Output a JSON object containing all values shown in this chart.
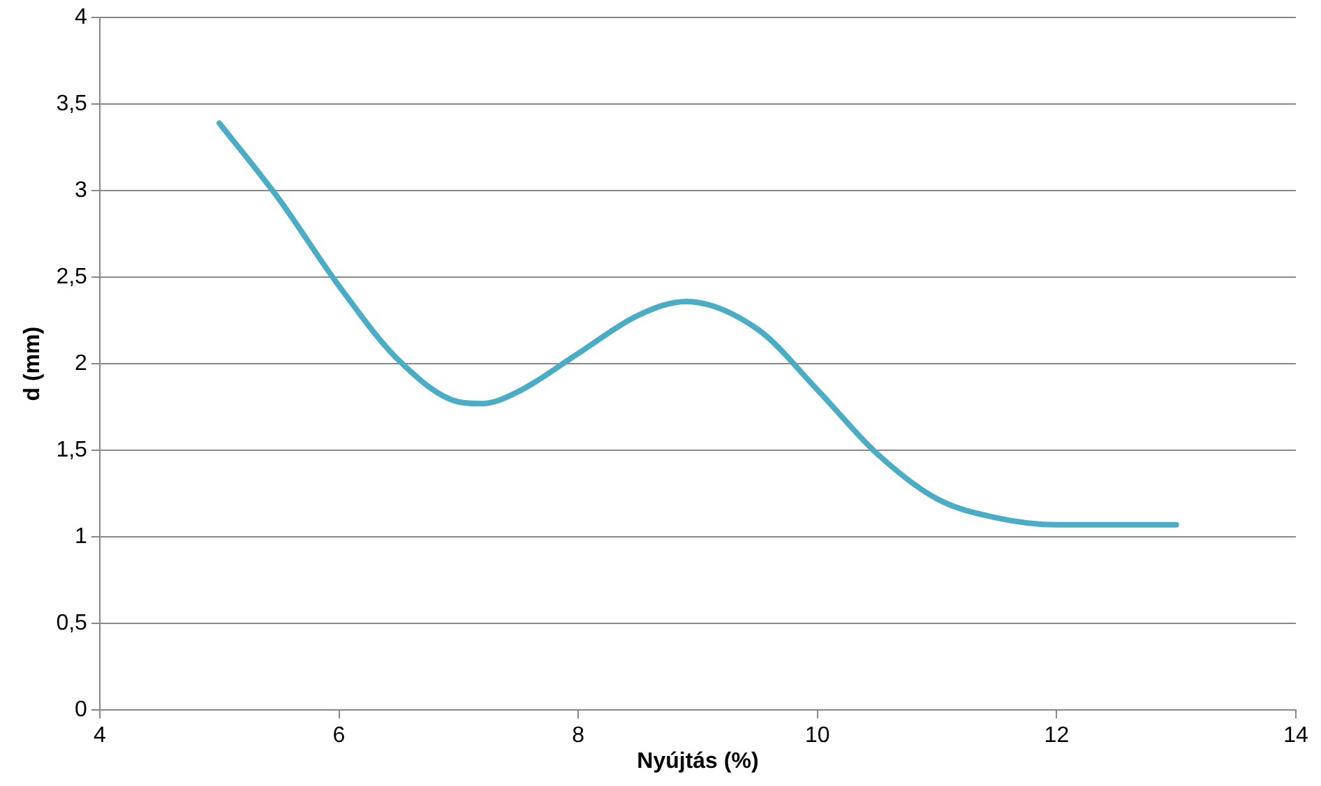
{
  "chart_data": {
    "type": "line",
    "xlabel": "Nyújtás (%)",
    "ylabel": "d (mm)",
    "xlim": [
      4,
      14
    ],
    "xticks": [
      4,
      6,
      8,
      10,
      12,
      14
    ],
    "ylim": [
      0,
      4
    ],
    "yticks": [
      0,
      {
        "value": 0.5,
        "label": "0,5"
      },
      1,
      {
        "value": 1.5,
        "label": "1,5"
      },
      2,
      {
        "value": 2.5,
        "label": "2,5"
      },
      3,
      {
        "value": 3.5,
        "label": "3,5"
      },
      4
    ],
    "grid": "y",
    "legend": false,
    "marker": "none",
    "line_style": "solid",
    "series": [
      {
        "color": "#4bacc6",
        "x": [
          5,
          5.5,
          6,
          6.5,
          7,
          7.2,
          7.5,
          8,
          8.5,
          8.9,
          9.5,
          10,
          10.5,
          11,
          11.5,
          12,
          12.5,
          13
        ],
        "values": [
          3.39,
          2.95,
          2.45,
          2.02,
          1.78,
          1.77,
          1.84,
          2.06,
          2.28,
          2.36,
          2.2,
          1.85,
          1.48,
          1.22,
          1.11,
          1.07,
          1.07,
          1.07
        ]
      }
    ]
  }
}
